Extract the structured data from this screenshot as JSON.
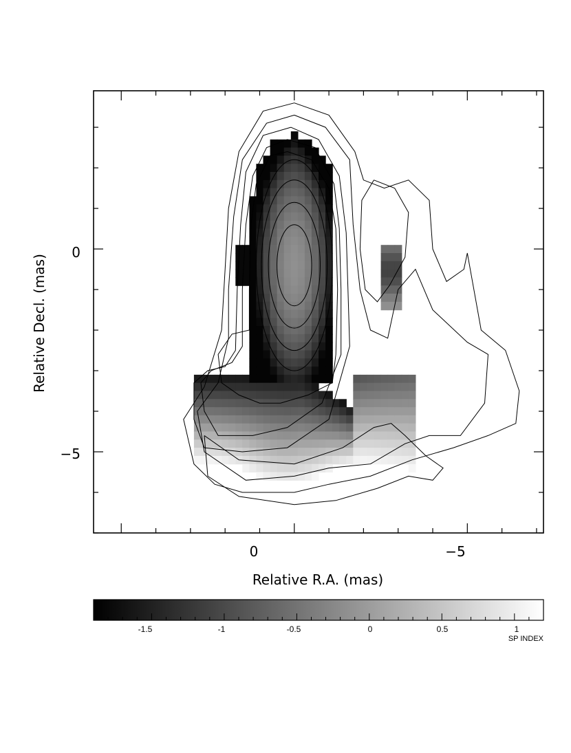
{
  "chart_data": {
    "type": "heatmap",
    "title": "",
    "xlabel": "Relative R.A. (mas)",
    "ylabel": "Relative Decl. (mas)",
    "xlim": [
      5.8,
      -7.2
    ],
    "ylim": [
      -7,
      3.9
    ],
    "x_ticks": [
      {
        "value": 0,
        "label": "0"
      },
      {
        "value": -5,
        "label": "−5"
      }
    ],
    "y_ticks": [
      {
        "value": 0,
        "label": "0"
      },
      {
        "value": -5,
        "label": "−5"
      }
    ],
    "x_reversed": true,
    "colorbar": {
      "title": "SP INDEX",
      "range": [
        -1.9,
        1.2
      ],
      "ticks": [
        {
          "value": -1.5,
          "label": "-1.5"
        },
        {
          "value": -1,
          "label": "-1"
        },
        {
          "value": -0.5,
          "label": "-0.5"
        },
        {
          "value": 0,
          "label": "0"
        },
        {
          "value": 0.5,
          "label": "0.5"
        },
        {
          "value": 1,
          "label": "1"
        }
      ]
    },
    "pixel_size_mas": 0.2,
    "map_regions": [
      {
        "name": "core",
        "dec_range": [
          -3.3,
          2.8
        ],
        "ra_halfwidth_at": [
          [
            2.8,
            0.1
          ],
          [
            2.6,
            0.6
          ],
          [
            2.2,
            0.9
          ],
          [
            1.8,
            1.1
          ],
          [
            1.2,
            1.2
          ],
          [
            0.0,
            1.2
          ],
          [
            -1.5,
            1.2
          ],
          [
            -2.8,
            1.2
          ],
          [
            -3.3,
            1.2
          ]
        ],
        "spectral_index_center": -0.2,
        "spectral_index_edge": -1.8
      },
      {
        "name": "southern-extension",
        "ra_range": [
          2.9,
          -3.6
        ],
        "dec_range": [
          -6.1,
          -3.1
        ],
        "spectral_index_range": [
          -1.8,
          1.1
        ]
      },
      {
        "name": "western-knot",
        "ra_range": [
          -2.5,
          -3.1
        ],
        "dec_range": [
          -1.5,
          0.1
        ],
        "spectral_index_range": [
          -1.5,
          0.2
        ]
      }
    ],
    "contours": {
      "center_ra": 0.0,
      "center_dec": -0.4,
      "count": 8,
      "inner_levels": [
        {
          "a": 0.5,
          "b": 1.0
        },
        {
          "a": 0.75,
          "b": 1.55
        },
        {
          "a": 0.95,
          "b": 2.1
        },
        {
          "a": 1.1,
          "b": 2.6
        }
      ]
    }
  }
}
